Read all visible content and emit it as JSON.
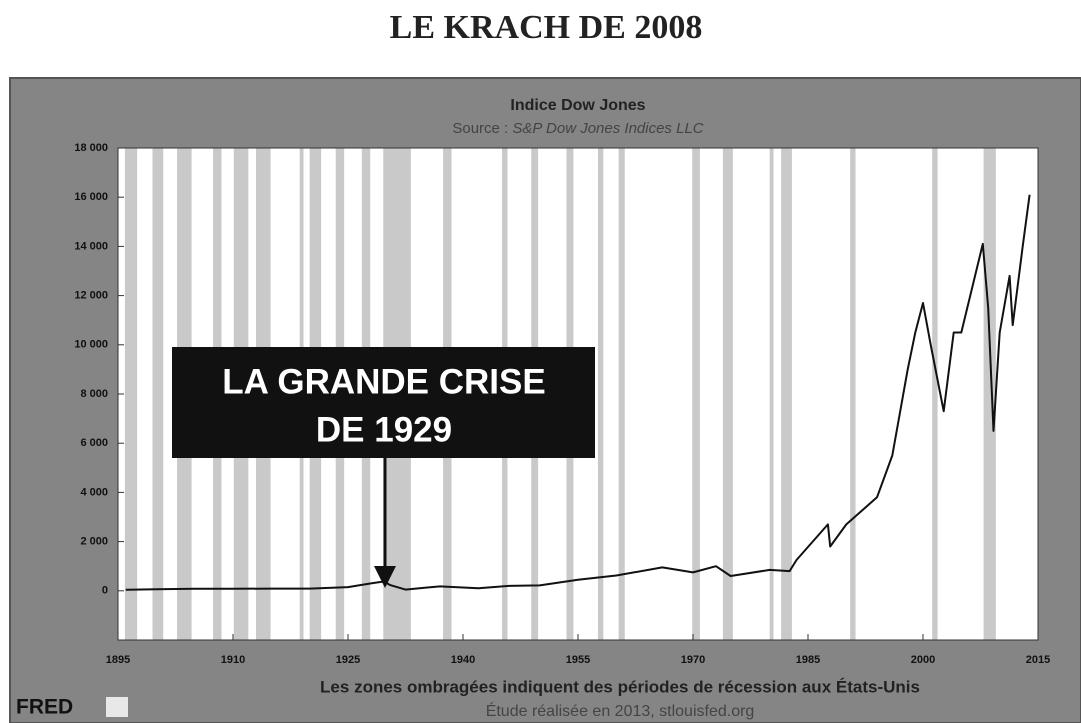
{
  "chart_data": {
    "type": "line",
    "title": "LE KRACH DE 2008",
    "chart_title": "Indice Dow Jones",
    "source_label": "Source :",
    "source": "S&P Dow Jones Indices LLC",
    "x_note": "Les zones ombragées indiquent des périodes de récession aux États-Unis",
    "credit": "Étude réalisée en 2013, stlouisfed.org",
    "logo": "FRED",
    "annotation": [
      "LA GRANDE CRISE",
      "DE 1929"
    ],
    "xlim": [
      1895,
      2015
    ],
    "xticks": [
      1895,
      1910,
      1925,
      1940,
      1955,
      1970,
      1985,
      2000,
      2015
    ],
    "ylim": [
      -2000,
      18000
    ],
    "yticks": [
      0,
      {
        "value": 2000,
        "label": "2 000"
      },
      {
        "value": 4000,
        "label": "4 000"
      },
      {
        "value": 6000,
        "label": "6 000"
      },
      {
        "value": 8000,
        "label": "8 000"
      },
      {
        "value": 10000,
        "label": "10 000"
      },
      {
        "value": 12000,
        "label": "12 000"
      },
      {
        "value": 14000,
        "label": "14 000"
      },
      {
        "value": 16000,
        "label": "16 000"
      },
      {
        "value": 18000,
        "label": "18 000"
      }
    ],
    "color": "#111111",
    "recession_color": "#c9c9c9",
    "recessions": [
      [
        1895.9,
        1897.5
      ],
      [
        1899.5,
        1900.9
      ],
      [
        1902.7,
        1904.6
      ],
      [
        1907.4,
        1908.5
      ],
      [
        1910.1,
        1912.0
      ],
      [
        1913.0,
        1914.9
      ],
      [
        1918.7,
        1919.2
      ],
      [
        1920.0,
        1921.5
      ],
      [
        1923.4,
        1924.5
      ],
      [
        1926.8,
        1927.9
      ],
      [
        1929.6,
        1933.2
      ],
      [
        1937.4,
        1938.5
      ],
      [
        1945.1,
        1945.8
      ],
      [
        1948.9,
        1949.8
      ],
      [
        1953.5,
        1954.4
      ],
      [
        1957.6,
        1958.3
      ],
      [
        1960.3,
        1961.1
      ],
      [
        1969.9,
        1970.9
      ],
      [
        1973.9,
        1975.2
      ],
      [
        1980.0,
        1980.5
      ],
      [
        1981.5,
        1982.9
      ],
      [
        1990.5,
        1991.2
      ],
      [
        2001.2,
        2001.9
      ],
      [
        2007.9,
        2009.5
      ]
    ],
    "x": [
      1896,
      1900,
      1905,
      1910,
      1915,
      1920,
      1925,
      1928,
      1929.7,
      1930.5,
      1932.5,
      1935,
      1937,
      1942,
      1946,
      1950,
      1955,
      1960,
      1966,
      1970,
      1973,
      1974.9,
      1980,
      1982.6,
      1983.5,
      1987.6,
      1987.9,
      1990,
      1994,
      1996,
      1998,
      1999,
      2000,
      2001,
      2002.7,
      2004,
      2005,
      2007.8,
      2008.5,
      2009.2,
      2010,
      2011.3,
      2011.7,
      2013,
      2013.9
    ],
    "values": [
      40,
      60,
      80,
      80,
      90,
      90,
      150,
      300,
      380,
      230,
      50,
      120,
      180,
      100,
      200,
      220,
      450,
      620,
      950,
      750,
      1000,
      600,
      850,
      800,
      1250,
      2700,
      1800,
      2700,
      3800,
      5500,
      9000,
      10500,
      11700,
      10000,
      7300,
      10500,
      10500,
      14100,
      11500,
      6500,
      10500,
      12800,
      10800,
      14000,
      16100
    ]
  }
}
